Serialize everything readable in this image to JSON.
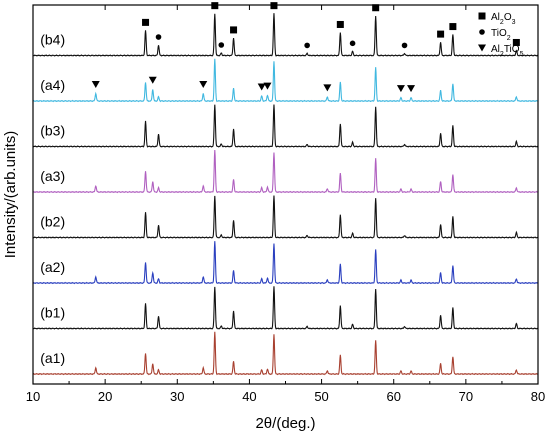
{
  "chart_data": {
    "type": "line",
    "xlabel": "2θ/(deg.)",
    "ylabel": "Intensity/(arb.units)",
    "xlim": [
      10,
      80
    ],
    "x_ticks": [
      10,
      20,
      30,
      40,
      50,
      60,
      70,
      80
    ],
    "y_ticks_shown": false,
    "grid": false,
    "legend_position": "top-right",
    "legend": [
      {
        "marker": "square",
        "label": "Al",
        "sub": "2",
        "mid": "O",
        "sub2": "3"
      },
      {
        "marker": "circle",
        "label": "TiO",
        "sub": "2",
        "mid": "",
        "sub2": ""
      },
      {
        "marker": "triangle-down",
        "label": "Al",
        "sub": "2",
        "mid": "TiO",
        "sub2": "5"
      }
    ],
    "peak_markers": [
      {
        "phase": "Al2O3",
        "marker": "square",
        "x": [
          25.6,
          35.2,
          37.8,
          43.4,
          52.6,
          57.5,
          66.5,
          68.2,
          77.0
        ]
      },
      {
        "phase": "TiO2",
        "marker": "circle",
        "x": [
          27.4,
          36.1,
          48.0,
          54.3,
          61.5
        ]
      },
      {
        "phase": "Al2TiO5",
        "marker": "triangle-down",
        "x": [
          18.7,
          26.6,
          33.6,
          41.7,
          42.5,
          50.8,
          61.0,
          62.4
        ]
      }
    ],
    "series": [
      {
        "name": "(a1)",
        "color": "#a84030",
        "peaks": [
          [
            18.7,
            0.15
          ],
          [
            25.6,
            0.5
          ],
          [
            26.6,
            0.25
          ],
          [
            27.4,
            0.1
          ],
          [
            33.6,
            0.15
          ],
          [
            35.2,
            1.0
          ],
          [
            37.8,
            0.3
          ],
          [
            41.7,
            0.1
          ],
          [
            42.5,
            0.12
          ],
          [
            43.4,
            0.95
          ],
          [
            50.8,
            0.08
          ],
          [
            52.6,
            0.45
          ],
          [
            57.5,
            0.8
          ],
          [
            61.0,
            0.07
          ],
          [
            62.4,
            0.07
          ],
          [
            66.5,
            0.25
          ],
          [
            68.2,
            0.42
          ],
          [
            77.0,
            0.1
          ]
        ]
      },
      {
        "name": "(b1)",
        "color": "#111111",
        "peaks": [
          [
            25.6,
            0.6
          ],
          [
            27.4,
            0.3
          ],
          [
            35.2,
            1.0
          ],
          [
            36.1,
            0.06
          ],
          [
            37.8,
            0.42
          ],
          [
            43.4,
            1.0
          ],
          [
            48.0,
            0.05
          ],
          [
            52.6,
            0.55
          ],
          [
            54.3,
            0.1
          ],
          [
            57.5,
            0.95
          ],
          [
            61.5,
            0.05
          ],
          [
            66.5,
            0.32
          ],
          [
            68.2,
            0.5
          ],
          [
            77.0,
            0.12
          ]
        ]
      },
      {
        "name": "(a2)",
        "color": "#2a3fbf",
        "peaks": [
          [
            18.7,
            0.15
          ],
          [
            25.6,
            0.5
          ],
          [
            26.6,
            0.25
          ],
          [
            27.4,
            0.1
          ],
          [
            33.6,
            0.15
          ],
          [
            35.2,
            1.0
          ],
          [
            37.8,
            0.3
          ],
          [
            41.7,
            0.1
          ],
          [
            42.5,
            0.12
          ],
          [
            43.4,
            0.95
          ],
          [
            50.8,
            0.08
          ],
          [
            52.6,
            0.45
          ],
          [
            57.5,
            0.8
          ],
          [
            61.0,
            0.07
          ],
          [
            62.4,
            0.07
          ],
          [
            66.5,
            0.25
          ],
          [
            68.2,
            0.42
          ],
          [
            77.0,
            0.1
          ]
        ]
      },
      {
        "name": "(b2)",
        "color": "#111111",
        "peaks": [
          [
            25.6,
            0.6
          ],
          [
            27.4,
            0.3
          ],
          [
            35.2,
            1.0
          ],
          [
            36.1,
            0.06
          ],
          [
            37.8,
            0.42
          ],
          [
            43.4,
            1.0
          ],
          [
            48.0,
            0.05
          ],
          [
            52.6,
            0.55
          ],
          [
            54.3,
            0.1
          ],
          [
            57.5,
            0.95
          ],
          [
            61.5,
            0.05
          ],
          [
            66.5,
            0.32
          ],
          [
            68.2,
            0.5
          ],
          [
            77.0,
            0.12
          ]
        ]
      },
      {
        "name": "(a3)",
        "color": "#b060c0",
        "peaks": [
          [
            18.7,
            0.15
          ],
          [
            25.6,
            0.5
          ],
          [
            26.6,
            0.25
          ],
          [
            27.4,
            0.1
          ],
          [
            33.6,
            0.15
          ],
          [
            35.2,
            1.0
          ],
          [
            37.8,
            0.3
          ],
          [
            41.7,
            0.1
          ],
          [
            42.5,
            0.12
          ],
          [
            43.4,
            0.95
          ],
          [
            50.8,
            0.08
          ],
          [
            52.6,
            0.45
          ],
          [
            57.5,
            0.8
          ],
          [
            61.0,
            0.07
          ],
          [
            62.4,
            0.07
          ],
          [
            66.5,
            0.25
          ],
          [
            68.2,
            0.42
          ],
          [
            77.0,
            0.1
          ]
        ]
      },
      {
        "name": "(b3)",
        "color": "#111111",
        "peaks": [
          [
            25.6,
            0.6
          ],
          [
            27.4,
            0.3
          ],
          [
            35.2,
            1.0
          ],
          [
            36.1,
            0.06
          ],
          [
            37.8,
            0.42
          ],
          [
            43.4,
            1.0
          ],
          [
            48.0,
            0.05
          ],
          [
            52.6,
            0.55
          ],
          [
            54.3,
            0.1
          ],
          [
            57.5,
            0.95
          ],
          [
            61.5,
            0.05
          ],
          [
            66.5,
            0.32
          ],
          [
            68.2,
            0.5
          ],
          [
            77.0,
            0.12
          ]
        ]
      },
      {
        "name": "(a4)",
        "color": "#40b8e0",
        "peaks": [
          [
            18.7,
            0.18
          ],
          [
            25.6,
            0.45
          ],
          [
            26.6,
            0.28
          ],
          [
            27.4,
            0.1
          ],
          [
            33.6,
            0.18
          ],
          [
            35.2,
            1.0
          ],
          [
            37.8,
            0.3
          ],
          [
            41.7,
            0.12
          ],
          [
            42.5,
            0.14
          ],
          [
            43.4,
            0.95
          ],
          [
            50.8,
            0.1
          ],
          [
            52.6,
            0.45
          ],
          [
            57.5,
            0.8
          ],
          [
            61.0,
            0.08
          ],
          [
            62.4,
            0.08
          ],
          [
            66.5,
            0.25
          ],
          [
            68.2,
            0.42
          ],
          [
            77.0,
            0.1
          ]
        ]
      },
      {
        "name": "(b4)",
        "color": "#111111",
        "peaks": [
          [
            25.6,
            0.6
          ],
          [
            27.4,
            0.25
          ],
          [
            35.2,
            1.0
          ],
          [
            36.1,
            0.06
          ],
          [
            37.8,
            0.42
          ],
          [
            43.4,
            1.0
          ],
          [
            48.0,
            0.05
          ],
          [
            52.6,
            0.55
          ],
          [
            54.3,
            0.1
          ],
          [
            57.5,
            0.95
          ],
          [
            61.5,
            0.05
          ],
          [
            66.5,
            0.32
          ],
          [
            68.2,
            0.5
          ],
          [
            77.0,
            0.12
          ]
        ]
      }
    ]
  }
}
